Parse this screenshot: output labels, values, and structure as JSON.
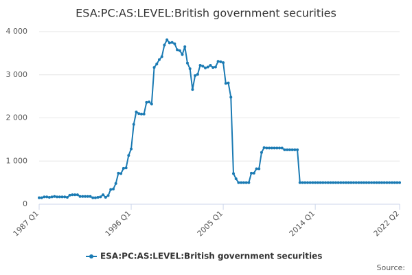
{
  "chart_data": {
    "type": "line",
    "title": "ESA:PC:AS:LEVEL:British government securities",
    "source": "Source:",
    "categories": [
      "1987 Q1",
      null,
      null,
      null,
      null,
      null,
      null,
      null,
      null,
      null,
      null,
      null,
      null,
      null,
      null,
      null,
      null,
      null,
      null,
      null,
      null,
      null,
      null,
      null,
      null,
      null,
      null,
      null,
      null,
      null,
      null,
      null,
      null,
      null,
      null,
      null,
      "1996 Q1",
      null,
      null,
      null,
      null,
      null,
      null,
      null,
      null,
      null,
      null,
      null,
      null,
      null,
      null,
      null,
      null,
      null,
      null,
      null,
      null,
      null,
      null,
      null,
      null,
      null,
      null,
      null,
      null,
      null,
      null,
      null,
      null,
      null,
      null,
      null,
      "2005 Q1",
      null,
      null,
      null,
      null,
      null,
      null,
      null,
      null,
      null,
      null,
      null,
      null,
      null,
      null,
      null,
      null,
      null,
      null,
      null,
      null,
      null,
      null,
      null,
      null,
      null,
      null,
      null,
      null,
      null,
      null,
      null,
      null,
      null,
      null,
      null,
      "2014 Q1",
      null,
      null,
      null,
      null,
      null,
      null,
      null,
      null,
      null,
      null,
      null,
      null,
      null,
      null,
      null,
      null,
      null,
      null,
      null,
      null,
      null,
      null,
      null,
      null,
      null,
      null,
      null,
      null,
      null,
      null,
      null,
      null,
      "2022 Q2"
    ],
    "series": [
      {
        "name": "ESA:PC:AS:LEVEL:British government securities",
        "color": "#1a7ab3",
        "values": [
          150,
          150,
          170,
          170,
          160,
          170,
          180,
          170,
          170,
          170,
          170,
          160,
          210,
          220,
          220,
          220,
          180,
          180,
          180,
          180,
          180,
          150,
          150,
          160,
          170,
          220,
          160,
          200,
          340,
          350,
          480,
          720,
          710,
          830,
          840,
          1130,
          1280,
          1850,
          2140,
          2100,
          2090,
          2090,
          2360,
          2370,
          2320,
          3170,
          3250,
          3350,
          3420,
          3690,
          3810,
          3740,
          3750,
          3720,
          3580,
          3560,
          3470,
          3650,
          3270,
          3140,
          2660,
          2980,
          3010,
          3220,
          3200,
          3160,
          3180,
          3220,
          3170,
          3180,
          3310,
          3300,
          3280,
          2800,
          2810,
          2480,
          710,
          590,
          500,
          500,
          500,
          500,
          500,
          720,
          720,
          820,
          820,
          1200,
          1310,
          1300,
          1300,
          1300,
          1300,
          1300,
          1300,
          1300,
          1260,
          1260,
          1260,
          1260,
          1260,
          1260,
          500,
          500,
          500,
          500,
          500,
          500,
          500,
          500,
          500,
          500,
          500,
          500,
          500,
          500,
          500,
          500,
          500,
          500,
          500,
          500,
          500,
          500,
          500,
          500,
          500,
          500,
          500,
          500,
          500,
          500,
          500,
          500,
          500,
          500,
          500,
          500,
          500,
          500,
          500,
          500
        ]
      }
    ],
    "ylim": [
      0,
      4000
    ],
    "yticks": [
      0,
      {
        "value": 1000,
        "label": "1 000"
      },
      {
        "value": 2000,
        "label": "2 000"
      },
      {
        "value": 3000,
        "label": "3 000"
      },
      {
        "value": 4000,
        "label": "4 000"
      }
    ],
    "grid": true
  }
}
